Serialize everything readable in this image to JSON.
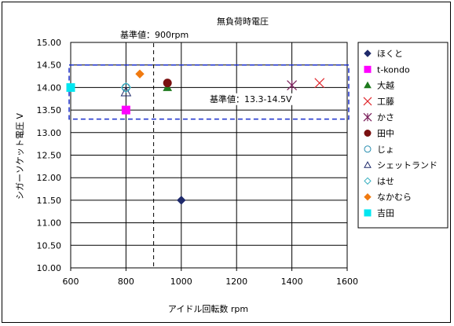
{
  "chart_data": {
    "type": "scatter",
    "title": "無負荷時電圧",
    "xlabel": "アイドル回転数 rpm",
    "ylabel": "シガーソケット電圧 V",
    "xlim": [
      600,
      1600
    ],
    "ylim": [
      10.0,
      15.0
    ],
    "xticks": [
      600,
      800,
      1000,
      1200,
      1400,
      1600
    ],
    "yticks": [
      10.0,
      10.5,
      11.0,
      11.5,
      12.0,
      12.5,
      13.0,
      13.5,
      14.0,
      14.5,
      15.0
    ],
    "xtick_labels": [
      "600",
      "800",
      "1000",
      "1200",
      "1400",
      "1600"
    ],
    "ytick_labels": [
      "10.00",
      "10.50",
      "11.00",
      "11.50",
      "12.00",
      "12.50",
      "13.00",
      "13.50",
      "14.00",
      "14.50",
      "15.00"
    ],
    "grid": "horizontal",
    "legend_position": "right",
    "series": [
      {
        "name": "ほくと",
        "marker": "diamond",
        "color": "#1f2a6b",
        "points": [
          [
            1000,
            11.5
          ]
        ]
      },
      {
        "name": "t-kondo",
        "marker": "square",
        "color": "#ff00ff",
        "points": [
          [
            800,
            13.5
          ]
        ]
      },
      {
        "name": "大越",
        "marker": "triangle",
        "color": "#1e7a1e",
        "points": [
          [
            950,
            14.0
          ]
        ]
      },
      {
        "name": "工藤",
        "marker": "x",
        "color": "#e0282e",
        "points": [
          [
            1500,
            14.1
          ]
        ]
      },
      {
        "name": "かさ",
        "marker": "star",
        "color": "#7a1e5a",
        "points": [
          [
            1400,
            14.05
          ]
        ]
      },
      {
        "name": "田中",
        "marker": "circle",
        "color": "#7a1010",
        "points": [
          [
            950,
            14.1
          ]
        ]
      },
      {
        "name": "じょ",
        "marker": "circle-open",
        "color": "#2a8fb0",
        "points": [
          [
            800,
            14.0
          ]
        ]
      },
      {
        "name": "シェットランド",
        "marker": "triangle-open",
        "color": "#1f2a6b",
        "points": [
          [
            800,
            13.9
          ]
        ]
      },
      {
        "name": "はせ",
        "marker": "diamond-open",
        "color": "#3ab0c0",
        "points": [
          [
            800,
            14.0
          ]
        ]
      },
      {
        "name": "なかむら",
        "marker": "diamond",
        "color": "#f07a10",
        "points": [
          [
            850,
            14.3
          ]
        ]
      },
      {
        "name": "吉田",
        "marker": "square",
        "color": "#00e6f0",
        "points": [
          [
            600,
            14.0
          ]
        ]
      }
    ],
    "annotations": [
      {
        "text": "基準値：900rpm",
        "kind": "vline",
        "x": 900
      },
      {
        "text": "基準値：13.3-14.5V",
        "kind": "band",
        "y_range": [
          13.3,
          14.5
        ]
      }
    ]
  }
}
